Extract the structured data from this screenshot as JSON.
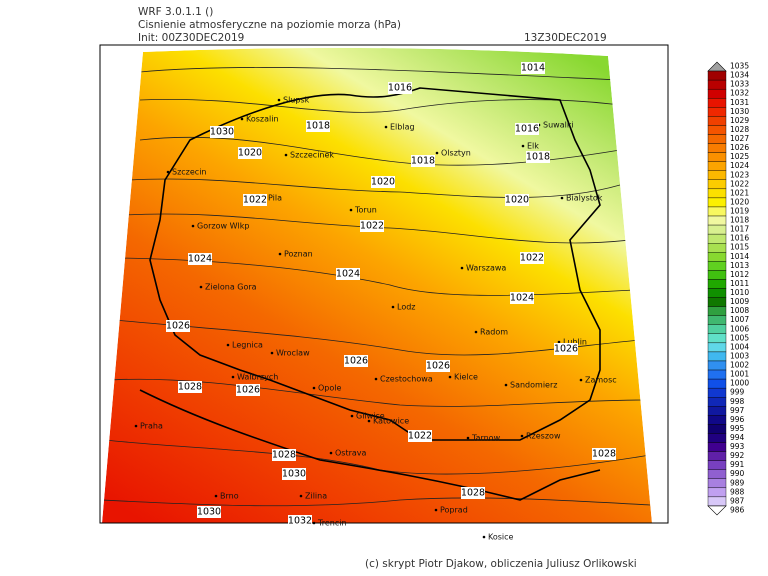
{
  "header": {
    "model": "WRF 3.0.1.1 ()",
    "title": "Cisnienie atmosferyczne na poziomie morza (hPa)",
    "init": "Init: 00Z30DEC2019",
    "valid": "13Z30DEC2019"
  },
  "footer": "(c) skrypt Piotr Djakow, obliczenia Juliusz Orlikowski",
  "cities": [
    "Slupsk",
    "Koszalin",
    "Elblag",
    "Olsztyn",
    "Elk",
    "Suwalki",
    "Szczecinek",
    "Szczecin",
    "Bialystok",
    "Pila",
    "Torun",
    "Gorzow Wlkp",
    "Poznan",
    "Warszawa",
    "Zielona Gora",
    "Lodz",
    "Radom",
    "Lublin",
    "Legnica",
    "Wroclaw",
    "Walbrzych",
    "Opole",
    "Czestochowa",
    "Kielce",
    "Sandomierz",
    "Zamosc",
    "Praha",
    "Gliwice",
    "Katowice",
    "Tarnow",
    "Rzeszow",
    "Ostrava",
    "Brno",
    "Zilina",
    "Poprad",
    "Trencin",
    "Kosice"
  ],
  "contour_labels": [
    1014,
    1016,
    1018,
    1030,
    1020,
    1016,
    1018,
    1018,
    1020,
    1022,
    1020,
    1022,
    1024,
    1024,
    1022,
    1024,
    1026,
    1026,
    1026,
    1026,
    1028,
    1026,
    1022,
    1028,
    1030,
    1028,
    1028,
    1030,
    1032
  ],
  "colorbar": {
    "levels": [
      1035,
      1034,
      1033,
      1032,
      1031,
      1030,
      1029,
      1028,
      1027,
      1026,
      1025,
      1024,
      1023,
      1022,
      1021,
      1020,
      1019,
      1018,
      1017,
      1016,
      1015,
      1014,
      1013,
      1012,
      1011,
      1010,
      1009,
      1008,
      1007,
      1006,
      1005,
      1004,
      1003,
      1002,
      1001,
      1000,
      999,
      998,
      997,
      996,
      995,
      994,
      993,
      992,
      991,
      990,
      989,
      988,
      987,
      986
    ],
    "colors": [
      "#a0a0a0",
      "#a00000",
      "#b80000",
      "#d00000",
      "#e81400",
      "#f02800",
      "#f04000",
      "#f45400",
      "#f46800",
      "#f87c00",
      "#fa9000",
      "#fca400",
      "#fcb800",
      "#fccc00",
      "#fce000",
      "#fcf000",
      "#f8f860",
      "#f0f8a0",
      "#d8f090",
      "#c0e870",
      "#a8e050",
      "#88d830",
      "#60d020",
      "#40c010",
      "#20a800",
      "#109000",
      "#107800",
      "#30a040",
      "#40b870",
      "#50d0a0",
      "#60e0c8",
      "#60d8e8",
      "#40b8f0",
      "#3090f0",
      "#2070f0",
      "#1050e8",
      "#1038d0",
      "#1028b8",
      "#1018a0",
      "#100888",
      "#100070",
      "#200080",
      "#400090",
      "#6020a8",
      "#7840c0",
      "#9060d0",
      "#a880e0",
      "#c0a0f0",
      "#d8c8f8",
      "#ffffff"
    ]
  }
}
